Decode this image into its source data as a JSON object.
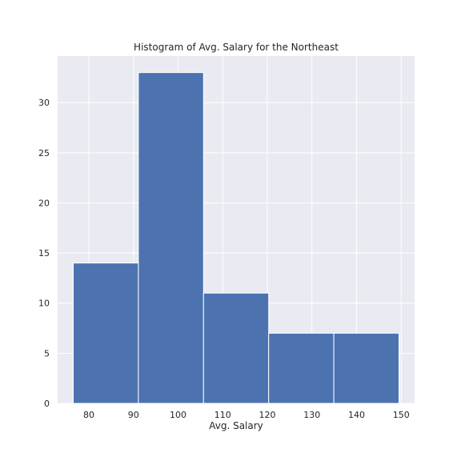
{
  "chart_data": {
    "type": "bar",
    "title": "Histogram of Avg. Salary for the Northeast",
    "xlabel": "Avg. Salary",
    "ylabel": "",
    "bins": [
      {
        "start": 76.5,
        "end": 91.1,
        "count": 14
      },
      {
        "start": 91.1,
        "end": 105.7,
        "count": 33
      },
      {
        "start": 105.7,
        "end": 120.3,
        "count": 11
      },
      {
        "start": 120.3,
        "end": 134.9,
        "count": 7
      },
      {
        "start": 134.9,
        "end": 149.5,
        "count": 7
      }
    ],
    "xlim": [
      73,
      153
    ],
    "ylim": [
      0,
      34.65
    ],
    "x_ticks": [
      80,
      90,
      100,
      110,
      120,
      130,
      140,
      150
    ],
    "y_ticks": [
      0,
      5,
      10,
      15,
      20,
      25,
      30
    ],
    "bar_color": "#4c72b0",
    "grid": true,
    "grid_color": "#ffffff",
    "background_color": "#eaeaf2"
  }
}
